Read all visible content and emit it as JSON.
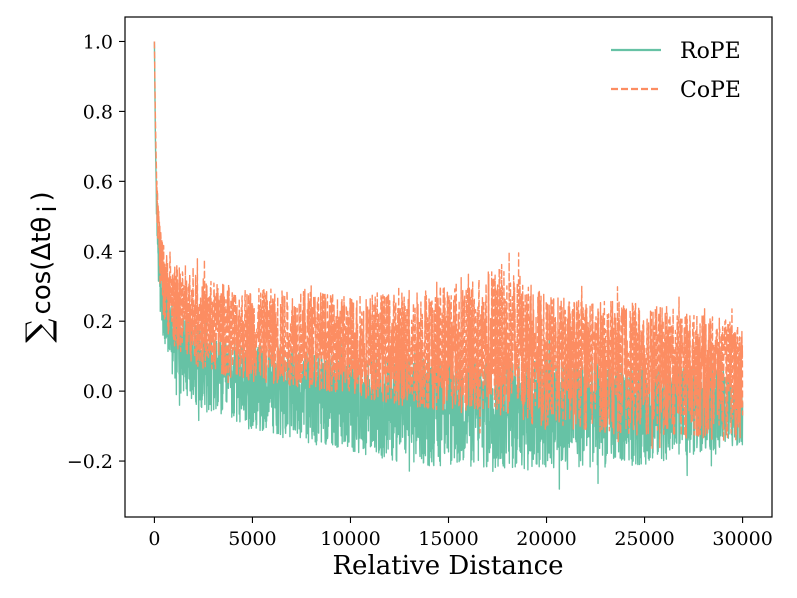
{
  "chart_data": {
    "type": "line",
    "title": "",
    "xlabel": "Relative Distance",
    "ylabel": {
      "symbol": "∑",
      "text": "cos(Δtθ",
      "subscript": "i",
      "close": ")"
    },
    "xlim": [
      -1500,
      31500
    ],
    "ylim": [
      -0.36,
      1.07
    ],
    "xticks": [
      0,
      5000,
      10000,
      15000,
      20000,
      25000,
      30000
    ],
    "xtick_labels": [
      "0",
      "5000",
      "10000",
      "15000",
      "20000",
      "25000",
      "30000"
    ],
    "yticks": [
      -0.2,
      0.0,
      0.2,
      0.4,
      0.6,
      0.8,
      1.0
    ],
    "ytick_labels": [
      "−0.2",
      "0.0",
      "0.2",
      "0.4",
      "0.6",
      "0.8",
      "1.0"
    ],
    "grid": false,
    "legend_position": "top-right",
    "series": [
      {
        "name": "RoPE",
        "color": "#66c2a5",
        "style": "solid",
        "points": [
          [
            0,
            1.0
          ],
          [
            50,
            0.72
          ],
          [
            100,
            0.56
          ],
          [
            200,
            0.4
          ],
          [
            300,
            0.32
          ],
          [
            500,
            0.24
          ],
          [
            750,
            0.19
          ],
          [
            1000,
            0.15
          ],
          [
            1500,
            0.11
          ],
          [
            2000,
            0.09
          ],
          [
            3000,
            0.06
          ],
          [
            4000,
            0.04
          ],
          [
            5000,
            0.03
          ],
          [
            6000,
            0.02
          ],
          [
            7000,
            0.01
          ],
          [
            8000,
            0.0
          ],
          [
            10000,
            -0.01
          ],
          [
            12000,
            -0.02
          ],
          [
            14000,
            -0.02
          ],
          [
            16000,
            -0.03
          ],
          [
            18000,
            -0.03
          ],
          [
            20000,
            -0.03
          ],
          [
            22000,
            -0.03
          ],
          [
            24000,
            -0.03
          ],
          [
            26000,
            -0.03
          ],
          [
            28000,
            -0.03
          ],
          [
            30000,
            -0.04
          ]
        ],
        "band": [
          [
            100,
            0.42,
            0.5
          ],
          [
            300,
            0.2,
            0.38
          ],
          [
            600,
            0.1,
            0.3
          ],
          [
            1000,
            0.02,
            0.26
          ],
          [
            2000,
            -0.04,
            0.2
          ],
          [
            3000,
            -0.08,
            0.16
          ],
          [
            5000,
            -0.12,
            0.14
          ],
          [
            8000,
            -0.16,
            0.12
          ],
          [
            10000,
            -0.18,
            0.1
          ],
          [
            13000,
            -0.22,
            0.12
          ],
          [
            17000,
            -0.24,
            0.1
          ],
          [
            20000,
            -0.24,
            0.1
          ],
          [
            25000,
            -0.22,
            0.08
          ],
          [
            30000,
            -0.16,
            0.06
          ]
        ]
      },
      {
        "name": "CoPE",
        "color": "#fc8d62",
        "style": "dashed",
        "points": [
          [
            0,
            1.0
          ],
          [
            50,
            0.78
          ],
          [
            100,
            0.64
          ],
          [
            200,
            0.5
          ],
          [
            300,
            0.42
          ],
          [
            500,
            0.34
          ],
          [
            750,
            0.3
          ],
          [
            1000,
            0.27
          ],
          [
            1500,
            0.24
          ],
          [
            2000,
            0.22
          ],
          [
            3000,
            0.2
          ],
          [
            4000,
            0.18
          ],
          [
            5000,
            0.17
          ],
          [
            6000,
            0.16
          ],
          [
            7000,
            0.15
          ],
          [
            8000,
            0.15
          ],
          [
            10000,
            0.14
          ],
          [
            12000,
            0.13
          ],
          [
            14000,
            0.13
          ],
          [
            16000,
            0.12
          ],
          [
            18000,
            0.12
          ],
          [
            20000,
            0.11
          ],
          [
            22000,
            0.11
          ],
          [
            24000,
            0.1
          ],
          [
            26000,
            0.1
          ],
          [
            28000,
            0.1
          ],
          [
            30000,
            0.09
          ]
        ],
        "band": [
          [
            100,
            0.52,
            0.62
          ],
          [
            300,
            0.26,
            0.46
          ],
          [
            600,
            0.16,
            0.4
          ],
          [
            1000,
            0.12,
            0.37
          ],
          [
            2000,
            0.06,
            0.34
          ],
          [
            3000,
            0.04,
            0.32
          ],
          [
            5000,
            0.02,
            0.3
          ],
          [
            8000,
            0.0,
            0.3
          ],
          [
            10000,
            -0.02,
            0.28
          ],
          [
            13000,
            -0.06,
            0.3
          ],
          [
            18000,
            -0.08,
            0.38
          ],
          [
            20000,
            -0.12,
            0.28
          ],
          [
            25000,
            -0.14,
            0.26
          ],
          [
            30000,
            -0.16,
            0.2
          ]
        ]
      }
    ]
  }
}
